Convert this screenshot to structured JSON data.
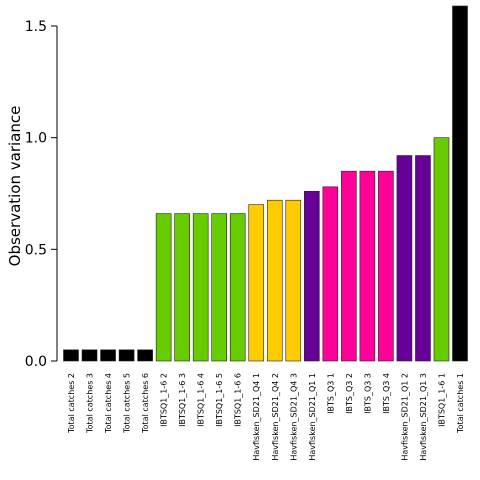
{
  "chart_data": {
    "type": "bar",
    "ylabel": "Observation variance",
    "xlabel": "",
    "ylim": [
      0,
      1.5
    ],
    "yticks": [
      "0.0",
      "0.5",
      "1.0",
      "1.5"
    ],
    "categories": [
      "Total catches 2",
      "Total catches 3",
      "Total catches 4",
      "Total catches 5",
      "Total catches 6",
      "IBTSQ1_1-6  2",
      "IBTSQ1_1-6  3",
      "IBTSQ1_1-6  4",
      "IBTSQ1_1-6  5",
      "IBTSQ1_1-6  6",
      "Havfisken_SD21_Q4 1",
      "Havfisken_SD21_Q4 2",
      "Havfisken_SD21_Q4 3",
      "Havfisken_SD21_Q1 1",
      "IBTS_Q3 1",
      "IBTS_Q3 2",
      "IBTS_Q3 3",
      "IBTS_Q3 4",
      "Havfisken_SD21_Q1 2",
      "Havfisken_SD21_Q1 3",
      "IBTSQ1_1-6  1",
      "Total catches 1"
    ],
    "values": [
      0.05,
      0.05,
      0.05,
      0.05,
      0.05,
      0.66,
      0.66,
      0.66,
      0.66,
      0.66,
      0.7,
      0.72,
      0.72,
      0.76,
      0.78,
      0.85,
      0.85,
      0.85,
      0.92,
      0.92,
      1.0,
      1.6
    ],
    "colors": [
      "#000000",
      "#000000",
      "#000000",
      "#000000",
      "#000000",
      "#66cc00",
      "#66cc00",
      "#66cc00",
      "#66cc00",
      "#66cc00",
      "#ffcc00",
      "#ffcc00",
      "#ffcc00",
      "#660099",
      "#ff0099",
      "#ff0099",
      "#ff0099",
      "#ff0099",
      "#660099",
      "#660099",
      "#66cc00",
      "#000000"
    ]
  }
}
